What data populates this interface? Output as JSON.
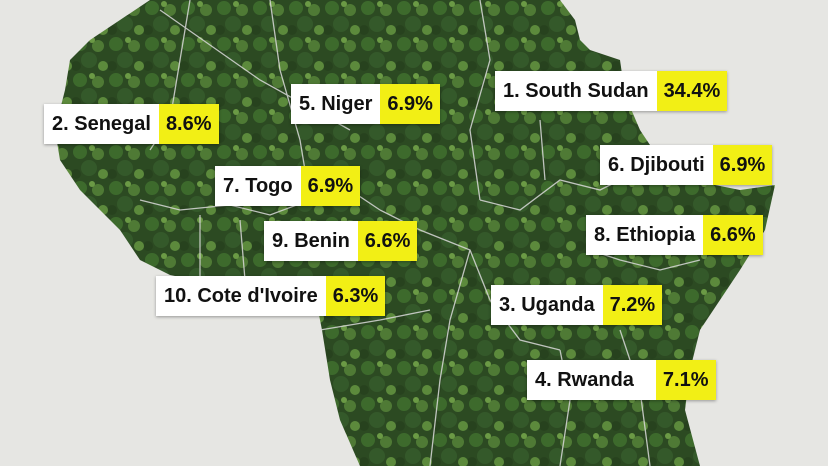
{
  "colors": {
    "background": "#e6e6e3",
    "land": "#2c4a22",
    "land_light": "#4f7a35",
    "border": "#d9d9d9",
    "label_bg": "#ffffff",
    "value_bg": "#f2ef15"
  },
  "labels": [
    {
      "id": "south-sudan",
      "name": "1. South Sudan",
      "value": "34.4%"
    },
    {
      "id": "senegal",
      "name": "2. Senegal",
      "value": "8.6%"
    },
    {
      "id": "niger",
      "name": "5. Niger",
      "value": "6.9%"
    },
    {
      "id": "djibouti",
      "name": "6. Djibouti",
      "value": "6.9%"
    },
    {
      "id": "togo",
      "name": "7. Togo",
      "value": "6.9%"
    },
    {
      "id": "ethiopia",
      "name": "8. Ethiopia",
      "value": "6.6%"
    },
    {
      "id": "benin",
      "name": "9. Benin",
      "value": "6.6%"
    },
    {
      "id": "cote-divoire",
      "name": "10. Cote d'Ivoire",
      "value": "6.3%"
    },
    {
      "id": "uganda",
      "name": "3. Uganda",
      "value": "7.2%"
    },
    {
      "id": "rwanda",
      "name": "4. Rwanda",
      "value": "7.1%"
    }
  ]
}
